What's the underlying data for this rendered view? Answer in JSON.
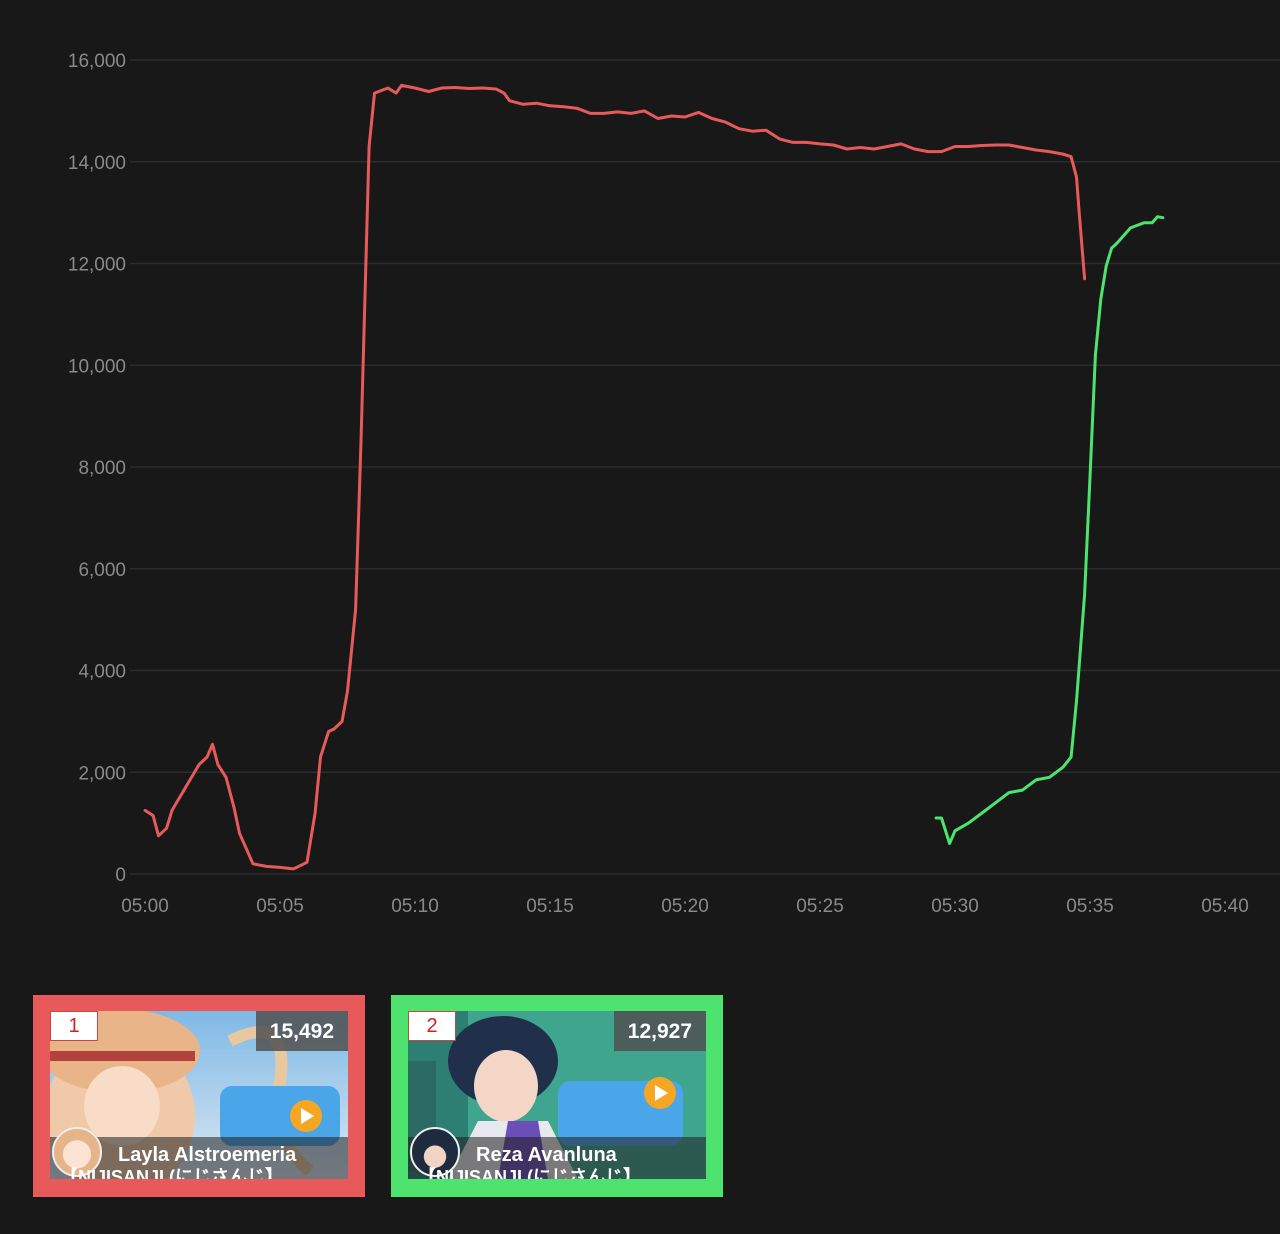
{
  "chart_data": {
    "type": "line",
    "title": "",
    "xlabel": "",
    "ylabel": "",
    "ylim": [
      0,
      16000
    ],
    "yticks": [
      0,
      2000,
      4000,
      6000,
      8000,
      10000,
      12000,
      14000,
      16000
    ],
    "ytick_labels": [
      "0",
      "2,000",
      "4,000",
      "6,000",
      "8,000",
      "10,000",
      "12,000",
      "14,000",
      "16,000"
    ],
    "xlim": [
      "05:00",
      "05:40"
    ],
    "xtick_labels": [
      "05:00",
      "05:05",
      "05:10",
      "05:15",
      "05:20",
      "05:25",
      "05:30",
      "05:35",
      "05:40"
    ],
    "grid": true,
    "series": [
      {
        "color": "#e85a5a",
        "points": [
          [
            "05:00",
            1250
          ],
          [
            "05:00.3",
            1150
          ],
          [
            "05:00.5",
            750
          ],
          [
            "05:00.8",
            900
          ],
          [
            "05:01",
            1250
          ],
          [
            "05:01.5",
            1700
          ],
          [
            "05:02",
            2150
          ],
          [
            "05:02.3",
            2300
          ],
          [
            "05:02.5",
            2550
          ],
          [
            "05:02.7",
            2150
          ],
          [
            "05:03",
            1900
          ],
          [
            "05:03.3",
            1300
          ],
          [
            "05:03.5",
            800
          ],
          [
            "05:04",
            200
          ],
          [
            "05:04.5",
            150
          ],
          [
            "05:05",
            130
          ],
          [
            "05:05.5",
            100
          ],
          [
            "05:06",
            230
          ],
          [
            "05:06.3",
            1200
          ],
          [
            "05:06.5",
            2300
          ],
          [
            "05:06.8",
            2800
          ],
          [
            "05:07",
            2850
          ],
          [
            "05:07.3",
            3000
          ],
          [
            "05:07.5",
            3600
          ],
          [
            "05:07.8",
            5200
          ],
          [
            "05:08",
            8500
          ],
          [
            "05:08.3",
            14300
          ],
          [
            "05:08.5",
            15350
          ],
          [
            "05:09",
            15450
          ],
          [
            "05:09.3",
            15350
          ],
          [
            "05:09.5",
            15500
          ],
          [
            "05:10",
            15450
          ],
          [
            "05:10.5",
            15380
          ],
          [
            "05:11",
            15450
          ],
          [
            "05:11.5",
            15460
          ],
          [
            "05:12",
            15440
          ],
          [
            "05:12.5",
            15450
          ],
          [
            "05:13",
            15430
          ],
          [
            "05:13.3",
            15350
          ],
          [
            "05:13.5",
            15200
          ],
          [
            "05:14",
            15130
          ],
          [
            "05:14.5",
            15150
          ],
          [
            "05:15",
            15100
          ],
          [
            "05:15.5",
            15080
          ],
          [
            "05:16",
            15050
          ],
          [
            "05:16.5",
            14950
          ],
          [
            "05:17",
            14950
          ],
          [
            "05:17.5",
            14980
          ],
          [
            "05:18",
            14950
          ],
          [
            "05:18.5",
            15000
          ],
          [
            "05:19",
            14850
          ],
          [
            "05:19.5",
            14900
          ],
          [
            "05:20",
            14880
          ],
          [
            "05:20.5",
            14970
          ],
          [
            "05:21",
            14850
          ],
          [
            "05:21.5",
            14780
          ],
          [
            "05:22",
            14650
          ],
          [
            "05:22.5",
            14600
          ],
          [
            "05:23",
            14620
          ],
          [
            "05:23.5",
            14450
          ],
          [
            "05:24",
            14380
          ],
          [
            "05:24.5",
            14380
          ],
          [
            "05:25",
            14350
          ],
          [
            "05:25.5",
            14330
          ],
          [
            "05:26",
            14250
          ],
          [
            "05:26.5",
            14280
          ],
          [
            "05:27",
            14250
          ],
          [
            "05:27.5",
            14300
          ],
          [
            "05:28",
            14350
          ],
          [
            "05:28.5",
            14250
          ],
          [
            "05:29",
            14200
          ],
          [
            "05:29.5",
            14200
          ],
          [
            "05:30",
            14300
          ],
          [
            "05:30.5",
            14300
          ],
          [
            "05:31",
            14320
          ],
          [
            "05:31.5",
            14330
          ],
          [
            "05:32",
            14330
          ],
          [
            "05:32.5",
            14280
          ],
          [
            "05:33",
            14230
          ],
          [
            "05:33.5",
            14200
          ],
          [
            "05:34",
            14150
          ],
          [
            "05:34.3",
            14100
          ],
          [
            "05:34.5",
            13700
          ],
          [
            "05:34.6",
            13000
          ],
          [
            "05:34.8",
            11700
          ]
        ]
      },
      {
        "color": "#4ee36e",
        "points": [
          [
            "05:29.3",
            1100
          ],
          [
            "05:29.5",
            1100
          ],
          [
            "05:29.8",
            600
          ],
          [
            "05:30",
            850
          ],
          [
            "05:30.5",
            1000
          ],
          [
            "05:31",
            1200
          ],
          [
            "05:31.5",
            1400
          ],
          [
            "05:32",
            1600
          ],
          [
            "05:32.5",
            1650
          ],
          [
            "05:33",
            1850
          ],
          [
            "05:33.5",
            1900
          ],
          [
            "05:34",
            2100
          ],
          [
            "05:34.3",
            2300
          ],
          [
            "05:34.5",
            3400
          ],
          [
            "05:34.8",
            5500
          ],
          [
            "05:35",
            7800
          ],
          [
            "05:35.2",
            10200
          ],
          [
            "05:35.4",
            11300
          ],
          [
            "05:35.6",
            11950
          ],
          [
            "05:35.8",
            12300
          ],
          [
            "05:36",
            12400
          ],
          [
            "05:36.5",
            12700
          ],
          [
            "05:37",
            12800
          ],
          [
            "05:37.3",
            12800
          ],
          [
            "05:37.5",
            12920
          ],
          [
            "05:37.7",
            12900
          ]
        ]
      }
    ]
  },
  "cards": [
    {
      "rank": "1",
      "count": "15,492",
      "name": "Layla Alstroemeria",
      "title_clip": "【NIJISANJI (にじさんじ】",
      "border": "#e85a5a"
    },
    {
      "rank": "2",
      "count": "12,927",
      "name": "Reza Avanluna",
      "title_clip": "【NIJISANJI (にじさんじ】",
      "border": "#4ee36e"
    }
  ]
}
